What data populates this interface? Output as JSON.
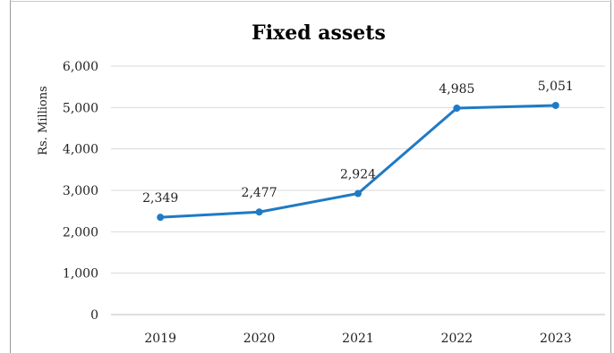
{
  "chart_data": {
    "type": "line",
    "title": "Fixed assets",
    "xlabel": "",
    "ylabel": "Rs. Millions",
    "categories": [
      "2019",
      "2020",
      "2021",
      "2022",
      "2023"
    ],
    "values": [
      2349,
      2477,
      2924,
      4985,
      5051
    ],
    "data_labels": [
      "2,349",
      "2,477",
      "2,924",
      "4,985",
      "5,051"
    ],
    "ylim": [
      0,
      6000
    ],
    "yticks": [
      0,
      1000,
      2000,
      3000,
      4000,
      5000,
      6000
    ],
    "ytick_labels": [
      "0",
      "1,000",
      "2,000",
      "3,000",
      "4,000",
      "5,000",
      "6,000"
    ],
    "grid": true,
    "legend": "none",
    "colors": {
      "line": "#1f7ac4",
      "grid": "#d9d9d9",
      "axis": "#bfbfbf"
    }
  }
}
